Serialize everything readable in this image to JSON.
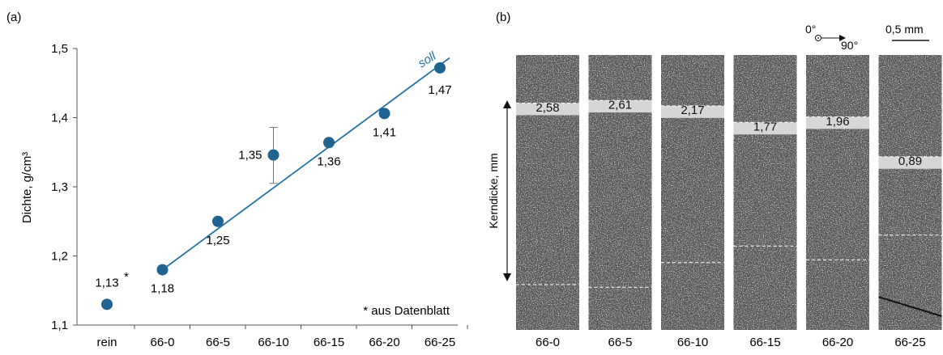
{
  "panel_a": {
    "label": "(a)",
    "chart_data": {
      "type": "scatter",
      "categories": [
        "rein",
        "66-0",
        "66-5",
        "66-10",
        "66-15",
        "66-20",
        "66-25"
      ],
      "ylabel": "Dichte, g/cm³",
      "ylim": [
        1.1,
        1.5
      ],
      "yticks": [
        "1,1",
        "1,2",
        "1,3",
        "1,4",
        "1,5"
      ],
      "yticks_values": [
        1.1,
        1.2,
        1.3,
        1.4,
        1.5
      ],
      "series": [
        {
          "values": [
            1.13,
            1.18,
            1.25,
            1.346,
            1.364,
            1.406,
            1.472
          ],
          "labels": [
            "1,13",
            "1,18",
            "1,25",
            "1,35",
            "1,36",
            "1,41",
            "1,47"
          ],
          "error_bar": {
            "category": "66-10",
            "low": 1.305,
            "high": 1.386
          }
        }
      ],
      "reference_line": {
        "label": "soll",
        "from": [
          "66-0",
          1.18
        ],
        "to": [
          "66-25",
          1.49
        ]
      },
      "annotations": {
        "rein_marker": "*",
        "footnote": "* aus Datenblatt"
      },
      "grid": false,
      "point_color": "#1F6391",
      "line_color": "#2471A3"
    }
  },
  "panel_b": {
    "label": "(b)",
    "orientation": {
      "zero": "0°",
      "ninety": "90°"
    },
    "scale_bar": "0,5 mm",
    "axis_label": "Kerndicke, mm",
    "specimens": [
      {
        "name": "66-0",
        "thickness": "2,58",
        "band_top": 0.175,
        "band_bottom": 0.255,
        "lower_line": 0.835
      },
      {
        "name": "66-5",
        "thickness": "2,61",
        "band_top": 0.165,
        "band_bottom": 0.245,
        "lower_line": 0.845
      },
      {
        "name": "66-10",
        "thickness": "2,17",
        "band_top": 0.185,
        "band_bottom": 0.265,
        "lower_line": 0.755
      },
      {
        "name": "66-15",
        "thickness": "1,77",
        "band_top": 0.245,
        "band_bottom": 0.325,
        "lower_line": 0.695
      },
      {
        "name": "66-20",
        "thickness": "1,96",
        "band_top": 0.225,
        "band_bottom": 0.305,
        "lower_line": 0.745
      },
      {
        "name": "66-25",
        "thickness": "0,89",
        "band_top": 0.37,
        "band_bottom": 0.45,
        "lower_line": 0.655
      }
    ]
  }
}
